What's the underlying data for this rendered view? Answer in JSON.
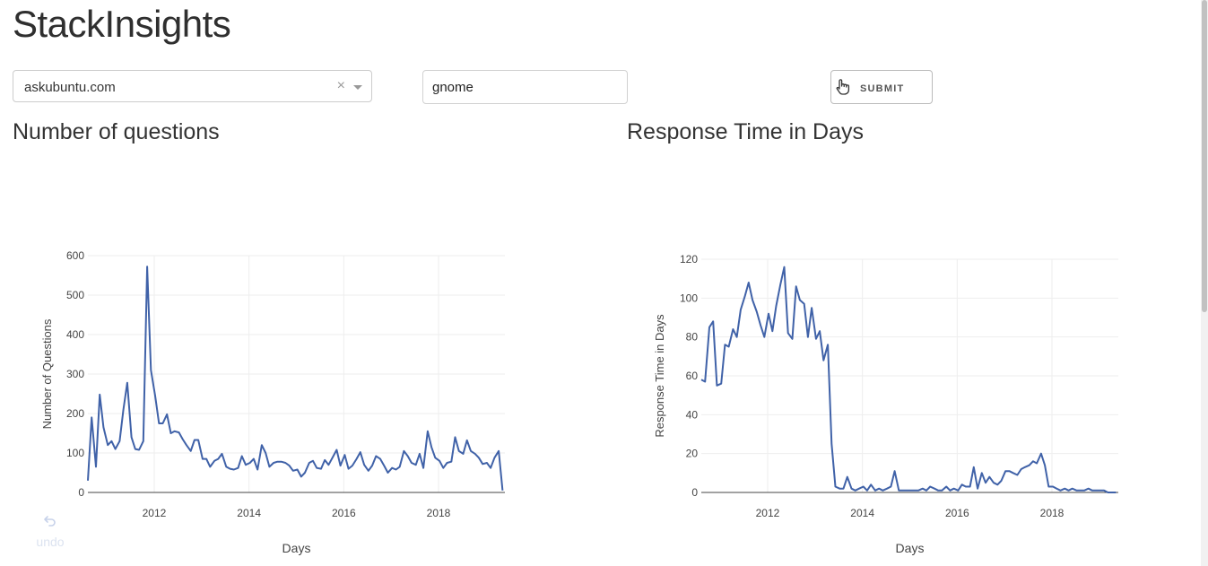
{
  "header": {
    "title": "StackInsights"
  },
  "controls": {
    "site_select": {
      "value": "askubuntu.com",
      "clear_glyph": "×"
    },
    "tag_input": {
      "value": "gnome"
    },
    "submit": {
      "label": "SUBMIT"
    }
  },
  "sections": {
    "questions_title": "Number of questions",
    "response_title": "Response Time in Days"
  },
  "undo": {
    "label": "undo"
  },
  "colors": {
    "line": "#4062a8",
    "grid": "#eeeeee",
    "axis": "#444444",
    "undo": "#dce3f0"
  },
  "icons": {
    "submit": "hand-pointer-icon",
    "undo": "undo-icon",
    "clear": "close-icon",
    "dropdown": "chevron-down-icon"
  },
  "chart_data": [
    {
      "type": "line",
      "title": "Number of questions",
      "xlabel": "Days",
      "ylabel": "Number of Questions",
      "xlim": [
        2010.6,
        2019.4
      ],
      "ylim": [
        0,
        600
      ],
      "xticks": [
        2012,
        2014,
        2016,
        2018
      ],
      "yticks": [
        0,
        100,
        200,
        300,
        400,
        500,
        600
      ],
      "grid": true,
      "series": [
        {
          "x": [
            2010.6,
            2010.68,
            2010.77,
            2010.85,
            2010.93,
            2011.02,
            2011.1,
            2011.18,
            2011.27,
            2011.35,
            2011.43,
            2011.52,
            2011.6,
            2011.68,
            2011.77,
            2011.85,
            2011.93,
            2012.02,
            2012.1,
            2012.18,
            2012.27,
            2012.35,
            2012.43,
            2012.52,
            2012.6,
            2012.68,
            2012.77,
            2012.85,
            2012.93,
            2013.02,
            2013.1,
            2013.18,
            2013.27,
            2013.35,
            2013.43,
            2013.52,
            2013.6,
            2013.68,
            2013.77,
            2013.85,
            2013.93,
            2014.02,
            2014.1,
            2014.18,
            2014.27,
            2014.35,
            2014.43,
            2014.52,
            2014.6,
            2014.68,
            2014.77,
            2014.85,
            2014.93,
            2015.02,
            2015.1,
            2015.18,
            2015.27,
            2015.35,
            2015.43,
            2015.52,
            2015.6,
            2015.68,
            2015.77,
            2015.85,
            2015.93,
            2016.02,
            2016.1,
            2016.18,
            2016.27,
            2016.35,
            2016.43,
            2016.52,
            2016.6,
            2016.68,
            2016.77,
            2016.85,
            2016.93,
            2017.02,
            2017.1,
            2017.18,
            2017.27,
            2017.35,
            2017.43,
            2017.52,
            2017.6,
            2017.68,
            2017.77,
            2017.85,
            2017.93,
            2018.02,
            2018.1,
            2018.18,
            2018.27,
            2018.35,
            2018.43,
            2018.52,
            2018.6,
            2018.68,
            2018.77,
            2018.85,
            2018.93,
            2019.02,
            2019.1,
            2019.18,
            2019.27,
            2019.35
          ],
          "y": [
            30,
            190,
            65,
            248,
            165,
            120,
            130,
            110,
            130,
            210,
            278,
            140,
            110,
            108,
            130,
            572,
            310,
            245,
            175,
            175,
            198,
            150,
            155,
            152,
            135,
            120,
            105,
            133,
            133,
            85,
            85,
            65,
            80,
            85,
            98,
            65,
            60,
            58,
            62,
            92,
            70,
            75,
            85,
            58,
            120,
            100,
            65,
            75,
            78,
            78,
            75,
            68,
            55,
            58,
            40,
            50,
            75,
            80,
            62,
            60,
            82,
            70,
            90,
            108,
            68,
            95,
            60,
            68,
            85,
            102,
            70,
            55,
            68,
            92,
            85,
            68,
            50,
            62,
            58,
            65,
            105,
            92,
            75,
            70,
            98,
            62,
            155,
            115,
            88,
            80,
            62,
            75,
            78,
            140,
            105,
            98,
            132,
            105,
            98,
            88,
            72,
            75,
            62,
            88,
            105,
            5
          ]
        }
      ]
    },
    {
      "type": "line",
      "title": "Response Time in Days",
      "xlabel": "Days",
      "ylabel": "Response Time in Days",
      "xlim": [
        2010.6,
        2019.4
      ],
      "ylim": [
        0,
        120
      ],
      "xticks": [
        2012,
        2014,
        2016,
        2018
      ],
      "yticks": [
        0,
        20,
        40,
        60,
        80,
        100,
        120
      ],
      "grid": true,
      "series": [
        {
          "x": [
            2010.6,
            2010.68,
            2010.77,
            2010.85,
            2010.93,
            2011.02,
            2011.1,
            2011.18,
            2011.27,
            2011.35,
            2011.43,
            2011.52,
            2011.6,
            2011.68,
            2011.77,
            2011.85,
            2011.93,
            2012.02,
            2012.1,
            2012.18,
            2012.27,
            2012.35,
            2012.43,
            2012.52,
            2012.6,
            2012.68,
            2012.77,
            2012.85,
            2012.93,
            2013.02,
            2013.1,
            2013.18,
            2013.27,
            2013.35,
            2013.43,
            2013.52,
            2013.6,
            2013.68,
            2013.77,
            2013.85,
            2013.93,
            2014.02,
            2014.1,
            2014.18,
            2014.27,
            2014.35,
            2014.43,
            2014.52,
            2014.6,
            2014.68,
            2014.77,
            2014.85,
            2014.93,
            2015.02,
            2015.1,
            2015.18,
            2015.27,
            2015.35,
            2015.43,
            2015.52,
            2015.6,
            2015.68,
            2015.77,
            2015.85,
            2015.93,
            2016.02,
            2016.1,
            2016.18,
            2016.27,
            2016.35,
            2016.43,
            2016.52,
            2016.6,
            2016.68,
            2016.77,
            2016.85,
            2016.93,
            2017.02,
            2017.1,
            2017.18,
            2017.27,
            2017.35,
            2017.43,
            2017.52,
            2017.6,
            2017.68,
            2017.77,
            2017.85,
            2017.93,
            2018.02,
            2018.1,
            2018.18,
            2018.27,
            2018.35,
            2018.43,
            2018.52,
            2018.6,
            2018.68,
            2018.77,
            2018.85,
            2018.93,
            2019.02,
            2019.1,
            2019.18,
            2019.27,
            2019.35
          ],
          "y": [
            58,
            57,
            85,
            88,
            55,
            56,
            76,
            75,
            84,
            80,
            94,
            101,
            108,
            99,
            93,
            86,
            80,
            92,
            83,
            96,
            107,
            116,
            82,
            79,
            106,
            99,
            97,
            80,
            95,
            79,
            83,
            68,
            76,
            25,
            3,
            2,
            2,
            8,
            2,
            1,
            2,
            3,
            1,
            4,
            1,
            2,
            1,
            2,
            3,
            11,
            1,
            1,
            1,
            1,
            1,
            1,
            2,
            1,
            3,
            2,
            1,
            1,
            3,
            1,
            2,
            1,
            4,
            3,
            3,
            13,
            2,
            10,
            5,
            8,
            5,
            4,
            6,
            11,
            11,
            10,
            9,
            12,
            13,
            14,
            16,
            15,
            20,
            14,
            3,
            3,
            2,
            1,
            2,
            1,
            2,
            1,
            1,
            1,
            2,
            1,
            1,
            1,
            1,
            0,
            0,
            0
          ]
        }
      ]
    }
  ]
}
